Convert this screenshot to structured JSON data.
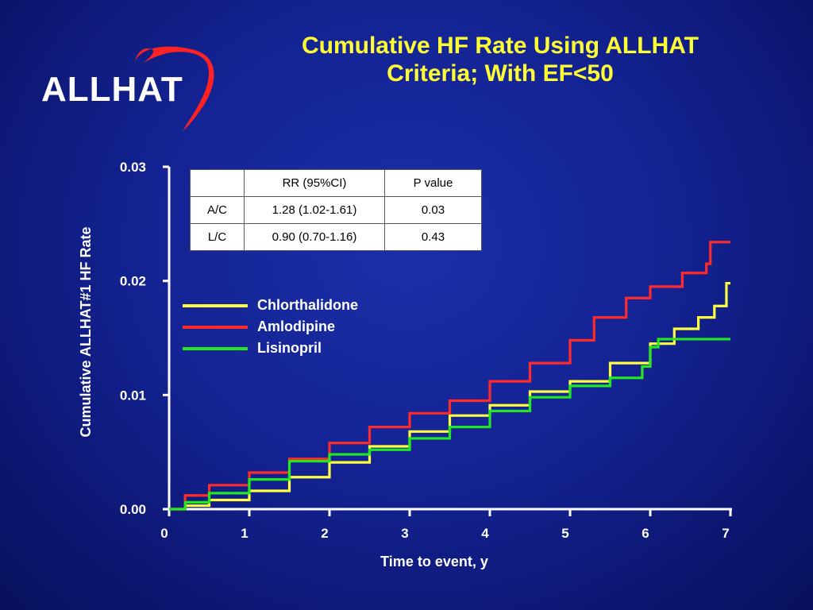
{
  "logo": {
    "text": "ALLHAT"
  },
  "title": {
    "line1": "Cumulative HF Rate Using ALLHAT",
    "line2": "Criteria; With EF<50"
  },
  "colors": {
    "chlorthalidone": "#ffff40",
    "amlodipine": "#ff2a2a",
    "lisinopril": "#22e822",
    "title": "#ffff33",
    "axis": "#ffffff"
  },
  "table": {
    "headers": [
      "",
      "RR (95%CI)",
      "P value"
    ],
    "rows": [
      [
        "A/C",
        "1.28 (1.02-1.61)",
        "0.03"
      ],
      [
        "L/C",
        "0.90 (0.70-1.16)",
        "0.43"
      ]
    ]
  },
  "legend": [
    {
      "label": "Chlorthalidone",
      "color": "#ffff40"
    },
    {
      "label": "Amlodipine",
      "color": "#ff2a2a"
    },
    {
      "label": "Lisinopril",
      "color": "#22e822"
    }
  ],
  "chart_data": {
    "type": "line",
    "step": true,
    "xlabel": "Time to event, y",
    "ylabel": "Cumulative ALLHAT#1 HF Rate",
    "xlim": [
      0,
      7
    ],
    "ylim": [
      0,
      0.03
    ],
    "xticks": [
      "0",
      "1",
      "2",
      "3",
      "4",
      "5",
      "6",
      "7"
    ],
    "yticks": [
      "0.00",
      "0.01",
      "0.02",
      "0.03"
    ],
    "grid": false,
    "legend_position": "center-left",
    "series": [
      {
        "name": "Chlorthalidone",
        "color": "#ffff40",
        "x": [
          0,
          0.2,
          0.5,
          1.0,
          1.5,
          2.0,
          2.5,
          3.0,
          3.5,
          4.0,
          4.5,
          5.0,
          5.5,
          6.0,
          6.3,
          6.6,
          6.8,
          6.95,
          7.0
        ],
        "y": [
          0,
          0.0003,
          0.0008,
          0.0016,
          0.0028,
          0.0041,
          0.0055,
          0.0068,
          0.0082,
          0.0091,
          0.0103,
          0.0112,
          0.0128,
          0.0145,
          0.0158,
          0.0168,
          0.0178,
          0.0198,
          0.0198
        ]
      },
      {
        "name": "Amlodipine",
        "color": "#ff2a2a",
        "x": [
          0,
          0.2,
          0.5,
          1.0,
          1.5,
          2.0,
          2.5,
          3.0,
          3.5,
          4.0,
          4.5,
          5.0,
          5.3,
          5.7,
          6.0,
          6.4,
          6.7,
          6.75,
          7.0
        ],
        "y": [
          0,
          0.0012,
          0.0021,
          0.0032,
          0.0044,
          0.0058,
          0.0072,
          0.0084,
          0.0095,
          0.0112,
          0.0128,
          0.0148,
          0.0168,
          0.0185,
          0.0195,
          0.0207,
          0.0215,
          0.0234,
          0.0234
        ]
      },
      {
        "name": "Lisinopril",
        "color": "#22e822",
        "x": [
          0,
          0.2,
          0.5,
          1.0,
          1.5,
          2.0,
          2.5,
          3.0,
          3.5,
          4.0,
          4.5,
          5.0,
          5.5,
          5.9,
          6.0,
          6.1,
          7.0
        ],
        "y": [
          0,
          0.0006,
          0.0014,
          0.0026,
          0.0042,
          0.0048,
          0.0052,
          0.0062,
          0.0072,
          0.0086,
          0.0098,
          0.0108,
          0.0115,
          0.0125,
          0.0142,
          0.0149,
          0.0149
        ]
      }
    ]
  }
}
